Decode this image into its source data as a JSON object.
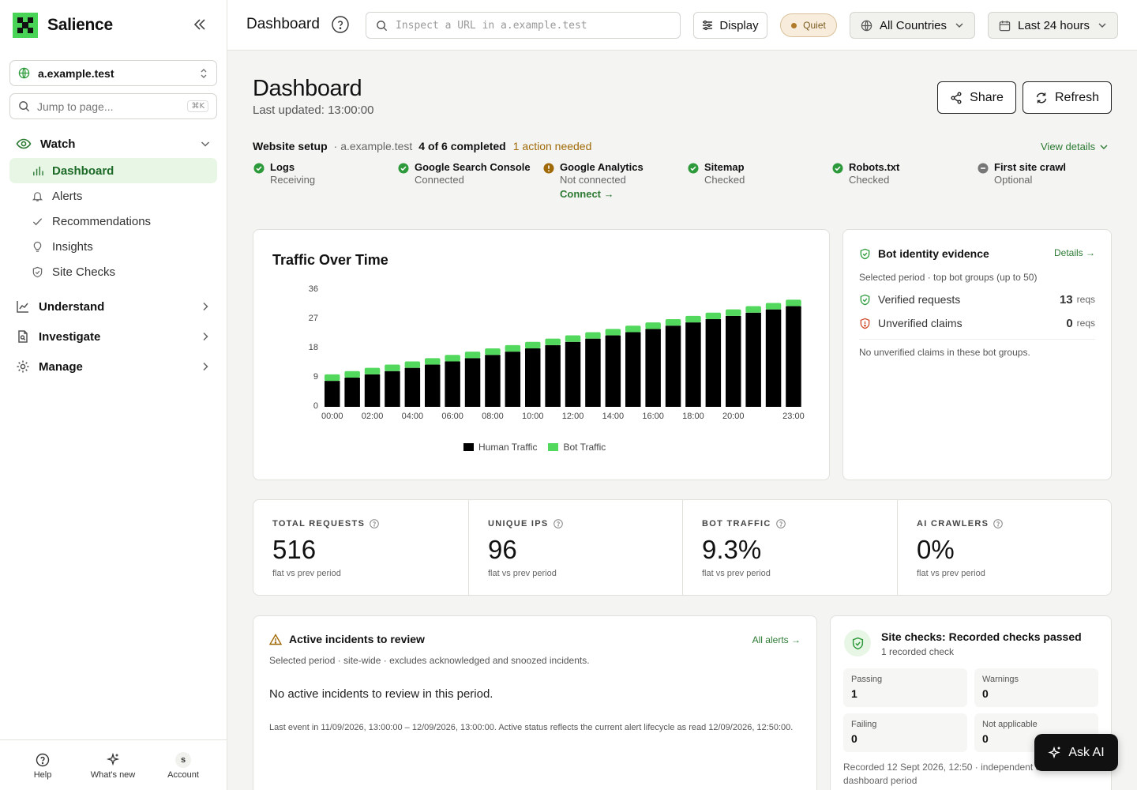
{
  "brand": {
    "name": "Salience"
  },
  "sidebar": {
    "site": "a.example.test",
    "jump_placeholder": "Jump to page...",
    "jump_shortcut": "⌘K",
    "groups": [
      {
        "label": "Watch",
        "items": [
          "Dashboard",
          "Alerts",
          "Recommendations",
          "Insights",
          "Site Checks"
        ],
        "active": "Dashboard"
      },
      {
        "label": "Understand"
      },
      {
        "label": "Investigate"
      },
      {
        "label": "Manage"
      }
    ],
    "footer": [
      {
        "label": "Help"
      },
      {
        "label": "What's new"
      },
      {
        "label": "Account",
        "avatar": "S"
      }
    ]
  },
  "topbar": {
    "title": "Dashboard",
    "url_placeholder": "Inspect a URL in a.example.test",
    "display": "Display",
    "quiet": "Quiet",
    "countries": "All Countries",
    "range": "Last 24 hours"
  },
  "header": {
    "title": "Dashboard",
    "updated": "Last updated: 13:00:00",
    "share": "Share",
    "refresh": "Refresh"
  },
  "setup": {
    "title": "Website setup",
    "site": "· a.example.test",
    "completed": "4 of 6 completed",
    "action": "1 action needed",
    "view_details": "View details",
    "steps": [
      {
        "name": "Logs",
        "status": "Receiving",
        "state": "done"
      },
      {
        "name": "Google Search Console",
        "status": "Connected",
        "state": "done"
      },
      {
        "name": "Google Analytics",
        "status": "Not connected",
        "state": "warn",
        "link": "Connect →"
      },
      {
        "name": "Sitemap",
        "status": "Checked",
        "state": "done"
      },
      {
        "name": "Robots.txt",
        "status": "Checked",
        "state": "done"
      },
      {
        "name": "First site crawl",
        "status": "Optional",
        "state": "optional"
      }
    ]
  },
  "chart": {
    "title": "Traffic Over Time",
    "legend": [
      "Human Traffic",
      "Bot Traffic"
    ],
    "colors": {
      "human": "#000000",
      "bot": "#52d85c"
    },
    "x_tick_labels": [
      "00:00",
      "02:00",
      "04:00",
      "06:00",
      "08:00",
      "10:00",
      "12:00",
      "14:00",
      "16:00",
      "18:00",
      "20:00",
      "23:00"
    ],
    "y_tick_labels": [
      "0",
      "9",
      "18",
      "27",
      "36"
    ]
  },
  "chart_data": {
    "type": "bar",
    "stacked": true,
    "categories": [
      "00:00",
      "01:00",
      "02:00",
      "03:00",
      "04:00",
      "05:00",
      "06:00",
      "07:00",
      "08:00",
      "09:00",
      "10:00",
      "11:00",
      "12:00",
      "13:00",
      "14:00",
      "15:00",
      "16:00",
      "17:00",
      "18:00",
      "19:00",
      "20:00",
      "21:00",
      "22:00",
      "23:00"
    ],
    "series": [
      {
        "name": "Human Traffic",
        "values": [
          8,
          9,
          10,
          11,
          12,
          13,
          14,
          15,
          16,
          17,
          18,
          19,
          20,
          21,
          22,
          23,
          24,
          25,
          26,
          27,
          28,
          29,
          30,
          31
        ]
      },
      {
        "name": "Bot Traffic",
        "values": [
          2,
          2,
          2,
          2,
          2,
          2,
          2,
          2,
          2,
          2,
          2,
          2,
          2,
          2,
          2,
          2,
          2,
          2,
          2,
          2,
          2,
          2,
          2,
          2
        ]
      }
    ],
    "ylim": [
      0,
      36
    ],
    "grid": false,
    "legend_position": "bottom"
  },
  "bot": {
    "title": "Bot identity evidence",
    "details": "Details →",
    "subtitle": "Selected period · top bot groups (up to 50)",
    "verified_label": "Verified requests",
    "verified_value": "13",
    "unverified_label": "Unverified claims",
    "unverified_value": "0",
    "unit": "reqs",
    "note": "No unverified claims in these bot groups."
  },
  "stats": [
    {
      "label": "TOTAL REQUESTS",
      "value": "516",
      "compare": "flat vs prev period"
    },
    {
      "label": "UNIQUE IPS",
      "value": "96",
      "compare": "flat vs prev period"
    },
    {
      "label": "BOT TRAFFIC",
      "value": "9.3%",
      "compare": "flat vs prev period"
    },
    {
      "label": "AI CRAWLERS",
      "value": "0%",
      "compare": "flat vs prev period"
    }
  ],
  "incidents": {
    "title": "Active incidents to review",
    "link": "All alerts →",
    "subtitle": "Selected period · site-wide · excludes acknowledged and snoozed incidents.",
    "empty": "No active incidents to review in this period.",
    "note": "Last event in 11/09/2026, 13:00:00 – 12/09/2026, 13:00:00. Active status reflects the current alert lifecycle as read 12/09/2026, 12:50:00."
  },
  "site_checks": {
    "title": "Site checks: Recorded checks passed",
    "subtitle": "1 recorded check",
    "tiles": [
      {
        "label": "Passing",
        "value": "1"
      },
      {
        "label": "Warnings",
        "value": "0"
      },
      {
        "label": "Failing",
        "value": "0"
      },
      {
        "label": "Not applicable",
        "value": "0"
      }
    ],
    "footer": "Recorded 12 Sept 2026, 12:50 · independent of dashboard period"
  },
  "ask_ai": "Ask AI"
}
